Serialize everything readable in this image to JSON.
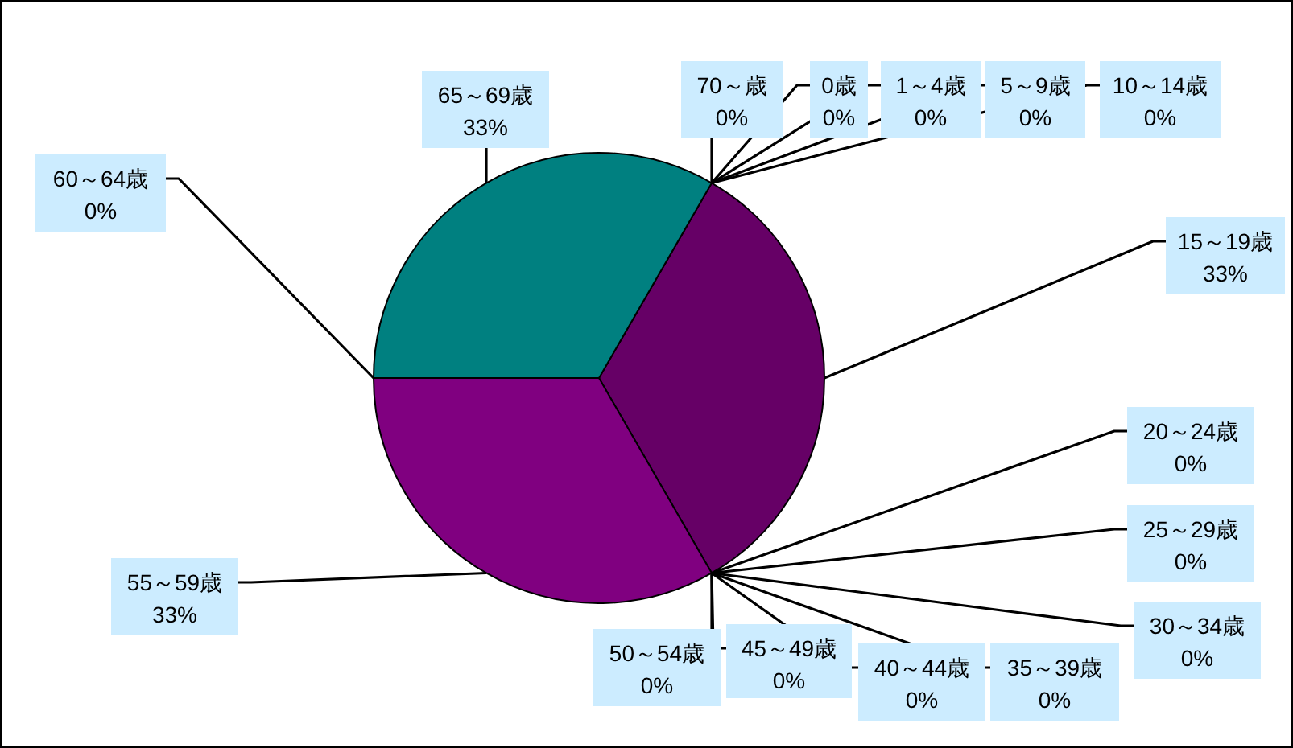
{
  "chart_data": {
    "type": "pie",
    "categories": [
      "0歳",
      "1～4歳",
      "5～9歳",
      "10～14歳",
      "15～19歳",
      "20～24歳",
      "25～29歳",
      "30～34歳",
      "35～39歳",
      "40～44歳",
      "45～49歳",
      "50～54歳",
      "55～59歳",
      "60～64歳",
      "65～69歳",
      "70～歳"
    ],
    "values": [
      0,
      0,
      0,
      0,
      33,
      0,
      0,
      0,
      0,
      0,
      0,
      0,
      33,
      0,
      33,
      0
    ],
    "value_labels": [
      "0%",
      "0%",
      "0%",
      "0%",
      "33%",
      "0%",
      "0%",
      "0%",
      "0%",
      "0%",
      "0%",
      "0%",
      "33%",
      "0%",
      "33%",
      "0%"
    ],
    "colors": [
      null,
      null,
      null,
      null,
      "#660066",
      null,
      null,
      null,
      null,
      null,
      null,
      null,
      "#800080",
      null,
      "#008080",
      null
    ]
  }
}
